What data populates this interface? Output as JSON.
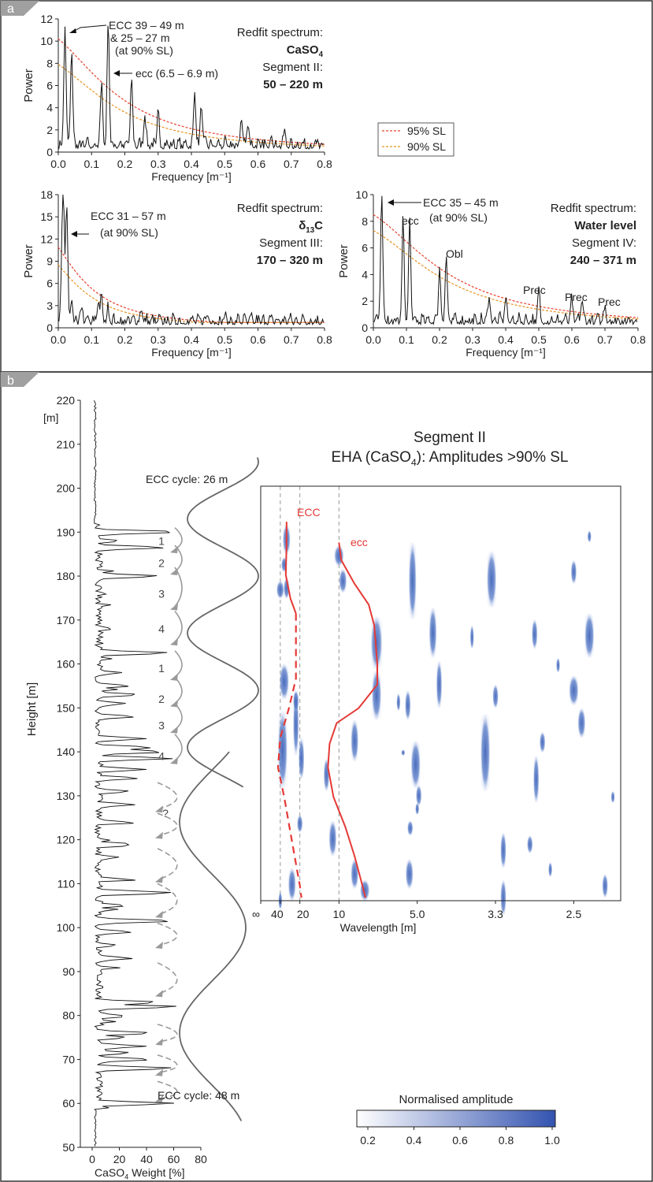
{
  "panels": {
    "a": "a",
    "b": "b"
  },
  "legend": {
    "sl95": "95% SL",
    "sl90": "90% SL"
  },
  "colors": {
    "sl95": "#e8402c",
    "sl90": "#e8921e",
    "ecc_line": "#e53935",
    "eha_blue": "#3f63b8",
    "curve": "#666666",
    "arrow": "#9a9a9a"
  },
  "chart_data": [
    {
      "type": "line",
      "title": "Redfit spectrum:",
      "subtitle_parts": [
        "CaSO",
        "4"
      ],
      "segment": "Segment II:",
      "range": "50 – 220 m",
      "xlabel": "Frequency [m⁻¹]",
      "ylabel": "Power",
      "xlim": [
        0,
        0.8
      ],
      "ylim": [
        0,
        12
      ],
      "xticks": [
        0,
        0.1,
        0.2,
        0.3,
        0.4,
        0.5,
        0.6,
        0.7,
        0.8
      ],
      "xtick_labels": [
        "0.0",
        "0.1",
        "0.2",
        "0.3",
        "0.4",
        "0.5",
        "0.6",
        "0.7",
        "0.8"
      ],
      "yticks": [
        0,
        2,
        4,
        6,
        8,
        10,
        12
      ],
      "sl95": {
        "y0": 10.2,
        "k": 4.0
      },
      "sl90": {
        "y0": 7.9,
        "k": 4.0
      },
      "spectrum_peaks": [
        [
          0.02,
          11.0
        ],
        [
          0.04,
          8.9
        ],
        [
          0.15,
          11.6
        ],
        [
          0.13,
          6.0
        ],
        [
          0.22,
          6.2
        ],
        [
          0.26,
          2.9
        ],
        [
          0.3,
          3.0
        ],
        [
          0.41,
          4.9
        ],
        [
          0.43,
          3.7
        ],
        [
          0.55,
          2.6
        ],
        [
          0.57,
          2.1
        ],
        [
          0.64,
          1.1
        ],
        [
          0.68,
          1.1
        ]
      ],
      "annotations": [
        {
          "text": "ECC 39 – 49 m",
          "x": 0.02,
          "y": 11.0
        },
        {
          "text": "& 25 – 27 m",
          "x": 0.02,
          "y": 11.0
        },
        {
          "text": "(at 90% SL)",
          "x": 0.02,
          "y": 11.0
        },
        {
          "text": "ecc (6.5 – 6.9 m)",
          "x": 0.15,
          "y": 7.0
        }
      ]
    },
    {
      "type": "line",
      "title": "Redfit spectrum:",
      "subtitle_parts": [
        "δ",
        "13",
        "C"
      ],
      "segment": "Segment III:",
      "range": "170 – 320 m",
      "xlabel": "Frequency [m⁻¹]",
      "ylabel": "Power",
      "xlim": [
        0,
        0.8
      ],
      "ylim": [
        0,
        18
      ],
      "xticks": [
        0,
        0.1,
        0.2,
        0.3,
        0.4,
        0.5,
        0.6,
        0.7,
        0.8
      ],
      "xtick_labels": [
        "0.0",
        "0.1",
        "0.2",
        "0.3",
        "0.4",
        "0.5",
        "0.6",
        "0.7",
        "0.8"
      ],
      "yticks": [
        0,
        3,
        6,
        9,
        12,
        15,
        18
      ],
      "sl95": {
        "y0": 10.9,
        "k": 10.0
      },
      "sl90": {
        "y0": 8.5,
        "k": 10.0
      },
      "spectrum_peaks": [
        [
          0.015,
          17.0
        ],
        [
          0.025,
          15.3
        ],
        [
          0.01,
          4.3
        ],
        [
          0.04,
          3.0
        ],
        [
          0.07,
          2.0
        ],
        [
          0.12,
          2.8
        ],
        [
          0.13,
          3.0
        ],
        [
          0.15,
          1.7
        ],
        [
          0.25,
          1.7
        ],
        [
          0.45,
          1.0
        ],
        [
          0.5,
          0.5
        ]
      ],
      "annotations": [
        {
          "text": "ECC 31 – 57 m",
          "x": 0.02,
          "y": 15.0
        },
        {
          "text": "(at 90% SL)",
          "x": 0.02,
          "y": 15.0
        }
      ]
    },
    {
      "type": "line",
      "title": "Redfit spectrum:",
      "subtitle_parts": [
        "Water level"
      ],
      "segment": "Segment IV:",
      "range": "240 – 371 m",
      "xlabel": "Frequency [m⁻¹]",
      "ylabel": "Power",
      "xlim": [
        0,
        0.8
      ],
      "ylim": [
        0,
        10
      ],
      "xticks": [
        0,
        0.1,
        0.2,
        0.3,
        0.4,
        0.5,
        0.6,
        0.7,
        0.8
      ],
      "xtick_labels": [
        "0.0",
        "0.1",
        "0.2",
        "0.3",
        "0.4",
        "0.5",
        "0.6",
        "0.7",
        "0.8"
      ],
      "yticks": [
        0,
        2,
        4,
        6,
        8,
        10
      ],
      "sl95": {
        "y0": 8.5,
        "k": 3.0
      },
      "sl90": {
        "y0": 7.3,
        "k": 3.0
      },
      "spectrum_peaks": [
        [
          0.025,
          9.6
        ],
        [
          0.09,
          7.6
        ],
        [
          0.11,
          7.4
        ],
        [
          0.2,
          4.0
        ],
        [
          0.22,
          4.9
        ],
        [
          0.35,
          2.0
        ],
        [
          0.4,
          1.8
        ],
        [
          0.5,
          2.2
        ],
        [
          0.6,
          1.5
        ],
        [
          0.63,
          1.6
        ],
        [
          0.7,
          1.2
        ]
      ],
      "annotations": [
        {
          "text": "ECC 35 – 45 m",
          "x": 0.025,
          "y": 9.6
        },
        {
          "text": "(at 90% SL)",
          "x": 0.025,
          "y": 9.6
        },
        {
          "text": "ecc",
          "x": 0.1,
          "y": 7.6
        },
        {
          "text": "Obl",
          "x": 0.22,
          "y": 4.9
        },
        {
          "text": "Prec",
          "x": 0.5,
          "y": 2.2
        },
        {
          "text": "Prec",
          "x": 0.62,
          "y": 1.6
        },
        {
          "text": "Prec",
          "x": 0.7,
          "y": 1.2
        }
      ]
    },
    {
      "type": "line",
      "xlabel_parts": [
        "CaSO",
        "4",
        " Weight [%]"
      ],
      "ylabel": "Height [m]",
      "unit_label": "[m]",
      "xlim": [
        0,
        80
      ],
      "ylim": [
        50,
        220
      ],
      "xticks": [
        0,
        20,
        40,
        60,
        80
      ],
      "yticks": [
        50,
        60,
        70,
        80,
        90,
        100,
        110,
        120,
        130,
        140,
        150,
        160,
        170,
        180,
        190,
        200,
        210,
        220
      ],
      "peaks": [
        [
          60,
          61
        ],
        [
          68,
          61
        ],
        [
          70,
          45
        ],
        [
          71.5,
          28
        ],
        [
          73,
          40
        ],
        [
          75,
          25
        ],
        [
          76,
          45
        ],
        [
          80,
          22
        ],
        [
          82,
          65
        ],
        [
          83,
          50
        ],
        [
          93,
          30
        ],
        [
          96,
          18
        ],
        [
          99,
          30
        ],
        [
          101.5,
          62
        ],
        [
          105,
          25
        ],
        [
          108,
          58
        ],
        [
          111,
          22
        ],
        [
          116,
          20
        ],
        [
          119,
          30
        ],
        [
          124,
          25
        ],
        [
          128,
          32
        ],
        [
          131,
          28
        ],
        [
          134,
          35
        ],
        [
          136,
          40
        ],
        [
          138.5,
          60
        ],
        [
          140,
          55
        ],
        [
          141,
          45
        ],
        [
          143,
          40
        ],
        [
          148,
          32
        ],
        [
          151,
          25
        ],
        [
          153,
          35
        ],
        [
          155,
          28
        ],
        [
          158,
          20
        ],
        [
          162.5,
          58
        ],
        [
          168,
          15
        ],
        [
          176,
          10
        ],
        [
          180,
          50
        ],
        [
          186.5,
          55
        ],
        [
          188,
          20
        ],
        [
          190,
          60
        ]
      ],
      "cycle_labels": [
        "ECC  cycle: 26 m",
        "ECC cycle: 48 m"
      ],
      "cycle_numbers": [
        {
          "text": "1",
          "h": 188
        },
        {
          "text": "2",
          "h": 183
        },
        {
          "text": "3",
          "h": 176
        },
        {
          "text": "4",
          "h": 168
        },
        {
          "text": "1",
          "h": 159
        },
        {
          "text": "2",
          "h": 152
        },
        {
          "text": "3",
          "h": 146
        },
        {
          "text": "4",
          "h": 139
        },
        {
          "text": "?",
          "h": 126
        }
      ]
    },
    {
      "type": "heatmap",
      "title": "Segment II",
      "title2_parts": [
        "EHA (CaSO",
        "4",
        "): Amplitudes >90% SL"
      ],
      "xlabel": "Wavelength [m]",
      "ylim": [
        65,
        205
      ],
      "xtick_labels": [
        "∞",
        "40",
        "20",
        "10",
        "5.0",
        "3.3",
        "2.5"
      ],
      "xtick_freq": [
        0,
        0.025,
        0.05,
        0.1,
        0.2,
        0.3,
        0.4
      ],
      "xlim_freq": [
        0,
        0.46
      ],
      "curve_labels": [
        "ECC",
        "ecc"
      ],
      "ECC_curve": [
        [
          193,
          0.033
        ],
        [
          185,
          0.033
        ],
        [
          175,
          0.032
        ],
        [
          167,
          0.038
        ],
        [
          162,
          0.045
        ]
      ],
      "ECC_dashed": [
        [
          162,
          0.045
        ],
        [
          140,
          0.045
        ],
        [
          130,
          0.036
        ],
        [
          120,
          0.025
        ],
        [
          110,
          0.022
        ],
        [
          100,
          0.03
        ],
        [
          85,
          0.04
        ],
        [
          70,
          0.05
        ],
        [
          66,
          0.052
        ]
      ],
      "ecc_curve": [
        [
          186,
          0.1
        ],
        [
          180,
          0.103
        ],
        [
          172,
          0.12
        ],
        [
          165,
          0.138
        ],
        [
          158,
          0.145
        ],
        [
          145,
          0.149
        ],
        [
          138,
          0.149
        ],
        [
          130,
          0.125
        ],
        [
          125,
          0.097
        ],
        [
          118,
          0.088
        ],
        [
          110,
          0.086
        ],
        [
          100,
          0.093
        ],
        [
          90,
          0.108
        ],
        [
          80,
          0.12
        ],
        [
          70,
          0.13
        ],
        [
          66,
          0.134
        ]
      ],
      "blobs": [
        [
          0.033,
          182,
          192,
          4
        ],
        [
          0.03,
          176,
          181,
          3
        ],
        [
          0.025,
          167,
          173,
          4
        ],
        [
          0.033,
          167,
          174,
          3
        ],
        [
          0.1,
          178,
          185,
          5
        ],
        [
          0.105,
          169,
          177,
          4
        ],
        [
          0.148,
          143,
          161,
          6
        ],
        [
          0.148,
          126,
          143,
          5
        ],
        [
          0.12,
          112,
          126,
          4
        ],
        [
          0.084,
          102,
          113,
          3
        ],
        [
          0.092,
          80,
          92,
          4
        ],
        [
          0.12,
          69,
          79,
          4
        ],
        [
          0.133,
          65,
          72,
          5
        ],
        [
          0.03,
          133,
          145,
          5
        ],
        [
          0.028,
          103,
          129,
          5
        ],
        [
          0.045,
          114,
          135,
          3
        ],
        [
          0.052,
          106,
          120,
          3
        ],
        [
          0.045,
          129,
          136,
          3
        ],
        [
          0.04,
          65,
          76,
          4
        ],
        [
          0.05,
          88,
          94,
          3
        ],
        [
          0.025,
          62,
          68,
          2
        ],
        [
          0.194,
          160,
          186,
          4
        ],
        [
          0.198,
          103,
          119,
          5
        ],
        [
          0.202,
          97,
          104,
          3
        ],
        [
          0.188,
          126,
          136,
          3
        ],
        [
          0.191,
          87,
          92,
          3
        ],
        [
          0.19,
          69,
          79,
          4
        ],
        [
          0.2,
          94,
          98,
          2
        ],
        [
          0.176,
          129,
          135,
          2
        ],
        [
          0.182,
          114,
          116,
          2
        ],
        [
          0.22,
          147,
          164,
          4
        ],
        [
          0.228,
          130,
          146,
          3
        ],
        [
          0.295,
          164,
          183,
          5
        ],
        [
          0.287,
          102,
          128,
          5
        ],
        [
          0.3,
          130,
          138,
          3
        ],
        [
          0.27,
          150,
          158,
          2
        ],
        [
          0.31,
          76,
          88,
          3
        ],
        [
          0.31,
          60,
          72,
          3
        ],
        [
          0.35,
          150,
          160,
          3
        ],
        [
          0.352,
          98,
          114,
          3
        ],
        [
          0.344,
          81,
          87,
          3
        ],
        [
          0.36,
          115,
          122,
          3
        ],
        [
          0.42,
          147,
          162,
          5
        ],
        [
          0.4,
          131,
          141,
          5
        ],
        [
          0.41,
          120,
          130,
          4
        ],
        [
          0.4,
          172,
          180,
          3
        ],
        [
          0.38,
          142,
          147,
          2
        ],
        [
          0.42,
          186,
          190,
          2
        ],
        [
          0.37,
          73,
          78,
          2
        ],
        [
          0.44,
          66,
          74,
          3
        ],
        [
          0.45,
          98,
          102,
          2
        ]
      ]
    }
  ],
  "colorbar": {
    "title": "Normalised amplitude",
    "ticks": [
      "0.2",
      "0.4",
      "0.6",
      "0.8",
      "1.0"
    ]
  }
}
